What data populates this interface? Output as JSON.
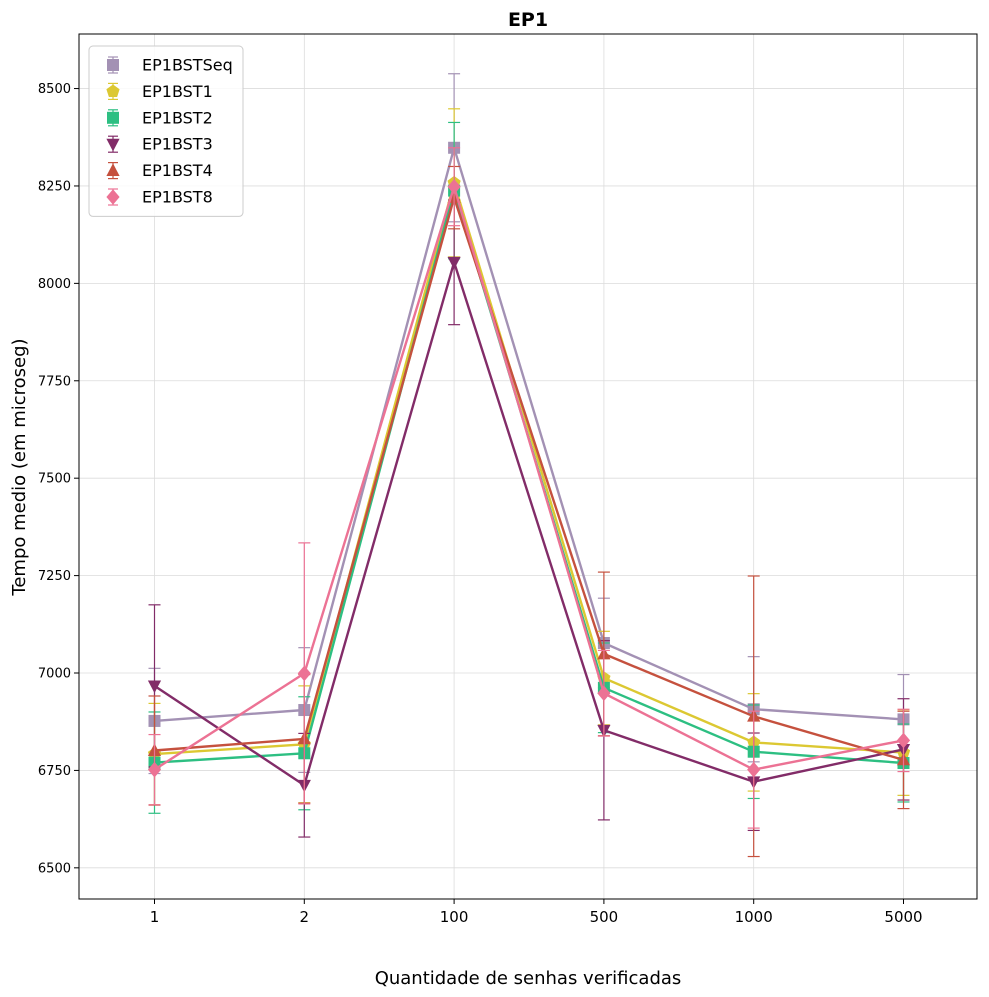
{
  "chart_data": {
    "type": "line",
    "title": "EP1",
    "xlabel": "Quantidade de senhas verificadas",
    "ylabel": "Tempo medio (em microseg)",
    "categories": [
      "1",
      "2",
      "100",
      "500",
      "1000",
      "5000"
    ],
    "ylim": [
      6420,
      8640
    ],
    "yticks": [
      6500,
      6750,
      7000,
      7250,
      7500,
      7750,
      8000,
      8250,
      8500
    ],
    "grid": true,
    "legend_position": "top-left",
    "error_bars": true,
    "series": [
      {
        "name": "EP1BSTSeq",
        "color": "#a391b4",
        "marker": "square",
        "values": [
          6877,
          6905,
          8348,
          7077,
          6907,
          6881
        ],
        "err": [
          135,
          160,
          190,
          115,
          135,
          115
        ]
      },
      {
        "name": "EP1BST1",
        "color": "#dcc832",
        "marker": "pentagon",
        "values": [
          6792,
          6817,
          8258,
          6987,
          6822,
          6796
        ],
        "err": [
          130,
          150,
          190,
          120,
          125,
          110
        ]
      },
      {
        "name": "EP1BST2",
        "color": "#2dbf82",
        "marker": "square",
        "values": [
          6770,
          6794,
          8238,
          6962,
          6798,
          6769
        ],
        "err": [
          130,
          145,
          175,
          115,
          120,
          100
        ]
      },
      {
        "name": "EP1BST3",
        "color": "#822c68",
        "marker": "triangle-down",
        "values": [
          6967,
          6712,
          8054,
          6853,
          6721,
          6804
        ],
        "err": [
          208,
          133,
          160,
          230,
          125,
          130
        ]
      },
      {
        "name": "EP1BST4",
        "color": "#c5513e",
        "marker": "triangle-up",
        "values": [
          6801,
          6831,
          8220,
          7049,
          6889,
          6777
        ],
        "err": [
          140,
          165,
          80,
          210,
          360,
          125
        ]
      },
      {
        "name": "EP1BST8",
        "color": "#ec7294",
        "marker": "diamond",
        "values": [
          6752,
          6999,
          8248,
          6948,
          6752,
          6827
        ],
        "err": [
          90,
          335,
          100,
          110,
          150,
          80
        ]
      }
    ]
  }
}
